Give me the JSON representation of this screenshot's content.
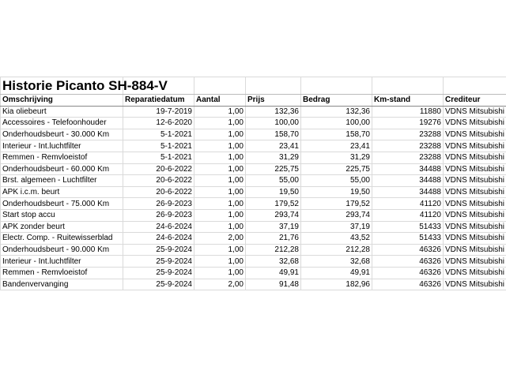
{
  "title": "Historie Picanto SH-884-V",
  "table": {
    "header": [
      "Omschrijving",
      "Reparatiedatum",
      "Aantal",
      "Prijs",
      "Bedrag",
      "Km-stand",
      "Crediteur"
    ],
    "rows": [
      [
        "Kia oliebeurt",
        "19-7-2019",
        "1,00",
        "132,36",
        "132,36",
        "11880",
        "VDNS Mitsubishi"
      ],
      [
        "Accessoires - Telefoonhouder",
        "12-6-2020",
        "1,00",
        "100,00",
        "100,00",
        "19276",
        "VDNS Mitsubishi"
      ],
      [
        "Onderhoudsbeurt - 30.000 Km",
        "5-1-2021",
        "1,00",
        "158,70",
        "158,70",
        "23288",
        "VDNS Mitsubishi"
      ],
      [
        "Interieur - Int.luchtfilter",
        "5-1-2021",
        "1,00",
        "23,41",
        "23,41",
        "23288",
        "VDNS Mitsubishi"
      ],
      [
        "Remmen - Remvloeistof",
        "5-1-2021",
        "1,00",
        "31,29",
        "31,29",
        "23288",
        "VDNS Mitsubishi"
      ],
      [
        "Onderhoudsbeurt - 60.000 Km",
        "20-6-2022",
        "1,00",
        "225,75",
        "225,75",
        "34488",
        "VDNS Mitsubishi"
      ],
      [
        "Brst. algemeen - Luchtfilter",
        "20-6-2022",
        "1,00",
        "55,00",
        "55,00",
        "34488",
        "VDNS Mitsubishi"
      ],
      [
        "APK i.c.m. beurt",
        "20-6-2022",
        "1,00",
        "19,50",
        "19,50",
        "34488",
        "VDNS Mitsubishi"
      ],
      [
        "Onderhoudsbeurt - 75.000 Km",
        "26-9-2023",
        "1,00",
        "179,52",
        "179,52",
        "41120",
        "VDNS Mitsubishi"
      ],
      [
        "Start stop accu",
        "26-9-2023",
        "1,00",
        "293,74",
        "293,74",
        "41120",
        "VDNS Mitsubishi"
      ],
      [
        "APK zonder beurt",
        "24-6-2024",
        "1,00",
        "37,19",
        "37,19",
        "51433",
        "VDNS Mitsubishi"
      ],
      [
        "Electr. Comp. - Ruitewisserblad",
        "24-6-2024",
        "2,00",
        "21,76",
        "43,52",
        "51433",
        "VDNS Mitsubishi"
      ],
      [
        "Onderhoudsbeurt - 90.000 Km",
        "25-9-2024",
        "1,00",
        "212,28",
        "212,28",
        "46326",
        "VDNS Mitsubishi"
      ],
      [
        "Interieur - Int.luchtfilter",
        "25-9-2024",
        "1,00",
        "32,68",
        "32,68",
        "46326",
        "VDNS Mitsubishi"
      ],
      [
        "Remmen - Remvloeistof",
        "25-9-2024",
        "1,00",
        "49,91",
        "49,91",
        "46326",
        "VDNS Mitsubishi"
      ],
      [
        "Bandenvervanging",
        "25-9-2024",
        "2,00",
        "91,48",
        "182,96",
        "46326",
        "VDNS Mitsubishi"
      ]
    ]
  }
}
